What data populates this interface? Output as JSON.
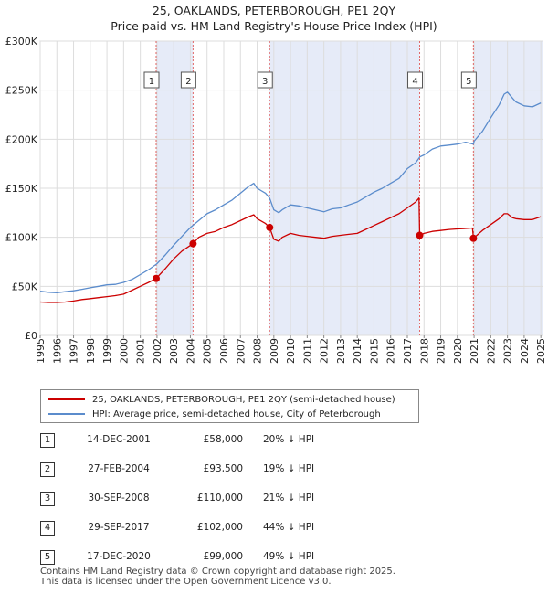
{
  "title_line1": "25, OAKLANDS, PETERBOROUGH, PE1 2QY",
  "title_line2": "Price paid vs. HM Land Registry's House Price Index (HPI)",
  "legend": {
    "property": "25, OAKLANDS, PETERBOROUGH, PE1 2QY (semi-detached house)",
    "hpi": "HPI: Average price, semi-detached house, City of Peterborough"
  },
  "colors": {
    "property": "#cc0000",
    "hpi": "#5b8ccc",
    "shade": "#e6ebf8",
    "marker_line": "#e06666"
  },
  "sales": [
    {
      "num": "1",
      "date": "14-DEC-2001",
      "price": "£58,000",
      "hpi": "20% ↓ HPI"
    },
    {
      "num": "2",
      "date": "27-FEB-2004",
      "price": "£93,500",
      "hpi": "19% ↓ HPI"
    },
    {
      "num": "3",
      "date": "30-SEP-2008",
      "price": "£110,000",
      "hpi": "21% ↓ HPI"
    },
    {
      "num": "4",
      "date": "29-SEP-2017",
      "price": "£102,000",
      "hpi": "44% ↓ HPI"
    },
    {
      "num": "5",
      "date": "17-DEC-2020",
      "price": "£99,000",
      "hpi": "49% ↓ HPI"
    }
  ],
  "footer": {
    "line1": "Contains HM Land Registry data © Crown copyright and database right 2025.",
    "line2": "This data is licensed under the Open Government Licence v3.0."
  },
  "chart_data": {
    "type": "line",
    "title": "25, OAKLANDS, PETERBOROUGH, PE1 2QY — Price paid vs. HM Land Registry's House Price Index (HPI)",
    "xlabel": "",
    "ylabel": "",
    "xlim": [
      1995,
      2025.1
    ],
    "ylim": [
      0,
      300000
    ],
    "x_ticks": [
      1995,
      1996,
      1997,
      1998,
      1999,
      2000,
      2001,
      2002,
      2003,
      2004,
      2005,
      2006,
      2007,
      2008,
      2009,
      2010,
      2011,
      2012,
      2013,
      2014,
      2015,
      2016,
      2017,
      2018,
      2019,
      2020,
      2021,
      2022,
      2023,
      2024,
      2025
    ],
    "y_ticks": [
      0,
      50000,
      100000,
      150000,
      200000,
      250000,
      300000
    ],
    "y_tick_labels": [
      "£0",
      "£50K",
      "£100K",
      "£150K",
      "£200K",
      "£250K",
      "£300K"
    ],
    "series": [
      {
        "name": "HPI: Average price, semi-detached house, City of Peterborough",
        "x": [
          1995.0,
          1995.5,
          1996.0,
          1996.5,
          1997.0,
          1997.5,
          1998.0,
          1998.5,
          1999.0,
          1999.5,
          2000.0,
          2000.5,
          2001.0,
          2001.5,
          2002.0,
          2002.5,
          2003.0,
          2003.5,
          2004.0,
          2004.5,
          2005.0,
          2005.5,
          2006.0,
          2006.5,
          2007.0,
          2007.5,
          2007.8,
          2008.0,
          2008.5,
          2008.75,
          2009.0,
          2009.3,
          2009.5,
          2010.0,
          2010.5,
          2011.0,
          2011.5,
          2012.0,
          2012.5,
          2013.0,
          2013.5,
          2014.0,
          2014.5,
          2015.0,
          2015.5,
          2016.0,
          2016.5,
          2017.0,
          2017.5,
          2017.75,
          2018.0,
          2018.5,
          2019.0,
          2019.5,
          2020.0,
          2020.5,
          2020.96,
          2021.0,
          2021.5,
          2022.0,
          2022.5,
          2022.8,
          2023.0,
          2023.3,
          2023.5,
          2024.0,
          2024.5,
          2025.0
        ],
        "values": [
          45000,
          44000,
          43500,
          44500,
          45500,
          47000,
          48500,
          50000,
          51500,
          52000,
          54000,
          57000,
          62000,
          67000,
          73000,
          82000,
          92000,
          101000,
          110000,
          117000,
          124000,
          128000,
          133000,
          138000,
          145000,
          152000,
          155000,
          150000,
          145000,
          140000,
          128000,
          125000,
          128000,
          133000,
          132000,
          130000,
          128000,
          126000,
          129000,
          130000,
          133000,
          136000,
          141000,
          146000,
          150000,
          155000,
          160000,
          170000,
          176000,
          182000,
          184000,
          190000,
          193000,
          194000,
          195000,
          197000,
          195000,
          198000,
          208000,
          222000,
          235000,
          246000,
          248000,
          242000,
          238000,
          234000,
          233000,
          237000
        ]
      },
      {
        "name": "25, OAKLANDS, PETERBOROUGH, PE1 2QY (semi-detached house)",
        "x": [
          1995.0,
          1995.5,
          1996.0,
          1996.5,
          1997.0,
          1997.5,
          1998.0,
          1998.5,
          1999.0,
          1999.5,
          2000.0,
          2000.5,
          2001.0,
          2001.5,
          2001.95,
          2002.5,
          2003.0,
          2003.5,
          2004.16,
          2004.5,
          2005.0,
          2005.5,
          2006.0,
          2006.5,
          2007.0,
          2007.5,
          2007.8,
          2008.0,
          2008.5,
          2008.75,
          2009.0,
          2009.3,
          2009.5,
          2010.0,
          2010.5,
          2011.0,
          2011.5,
          2012.0,
          2012.5,
          2013.0,
          2013.5,
          2014.0,
          2014.5,
          2015.0,
          2015.5,
          2016.0,
          2016.5,
          2017.0,
          2017.5,
          2017.7,
          2017.74,
          2018.0,
          2018.5,
          2019.0,
          2019.5,
          2020.0,
          2020.5,
          2020.9,
          2020.96,
          2021.5,
          2022.0,
          2022.5,
          2022.8,
          2023.0,
          2023.3,
          2023.5,
          2024.0,
          2024.5,
          2025.0
        ],
        "values": [
          34000,
          33500,
          33500,
          34000,
          35000,
          36500,
          37500,
          38500,
          39500,
          40500,
          42000,
          46000,
          50000,
          54000,
          58000,
          68000,
          78000,
          86000,
          93500,
          100000,
          104000,
          106000,
          110000,
          113000,
          117000,
          121000,
          123000,
          119000,
          114000,
          110000,
          98000,
          96000,
          100000,
          104000,
          102000,
          101000,
          100000,
          99000,
          101000,
          102000,
          103000,
          104000,
          108000,
          112000,
          116000,
          120000,
          124000,
          130000,
          136000,
          140000,
          102000,
          104000,
          106000,
          107000,
          108000,
          108500,
          109000,
          109500,
          99000,
          107000,
          113000,
          119000,
          124000,
          124000,
          120000,
          119000,
          118000,
          118000,
          121000
        ]
      }
    ],
    "sale_points": [
      {
        "label": "1",
        "x": 2001.95,
        "y": 58000
      },
      {
        "label": "2",
        "x": 2004.16,
        "y": 93500
      },
      {
        "label": "3",
        "x": 2008.75,
        "y": 110000
      },
      {
        "label": "4",
        "x": 2017.74,
        "y": 102000
      },
      {
        "label": "5",
        "x": 2020.96,
        "y": 99000
      }
    ],
    "shaded_spans": [
      [
        2001.95,
        2004.16
      ],
      [
        2008.75,
        2017.74
      ],
      [
        2020.96,
        2025.1
      ]
    ],
    "grid": true,
    "legend_position": "bottom"
  }
}
